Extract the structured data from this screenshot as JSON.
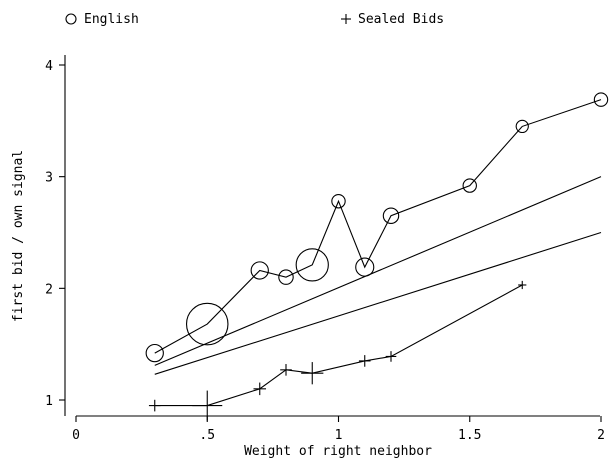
{
  "chart_data": {
    "type": "scatter",
    "title": "",
    "xlabel": "Weight of right neighbor",
    "ylabel": "first bid / own signal",
    "xlim": [
      0,
      2
    ],
    "ylim": [
      0.85,
      4.12
    ],
    "x_ticks": [
      {
        "value": 0,
        "label": "0"
      },
      {
        "value": 0.5,
        "label": ".5"
      },
      {
        "value": 1,
        "label": "1"
      },
      {
        "value": 1.5,
        "label": "1.5"
      },
      {
        "value": 2,
        "label": "2"
      }
    ],
    "y_ticks": [
      {
        "value": 1,
        "label": "1"
      },
      {
        "value": 2,
        "label": "2"
      },
      {
        "value": 3,
        "label": "3"
      },
      {
        "value": 4,
        "label": "4"
      }
    ],
    "grid": false,
    "legend_position": "top",
    "series": [
      {
        "name": "English",
        "marker": "circle",
        "connected": true,
        "points": [
          {
            "x": 0.3,
            "y": 1.42,
            "weight": 1.0
          },
          {
            "x": 0.5,
            "y": 1.68,
            "weight": 5.8
          },
          {
            "x": 0.7,
            "y": 2.16,
            "weight": 1.0
          },
          {
            "x": 0.8,
            "y": 2.1,
            "weight": 0.7
          },
          {
            "x": 0.9,
            "y": 2.21,
            "weight": 3.5
          },
          {
            "x": 1.0,
            "y": 2.78,
            "weight": 0.6
          },
          {
            "x": 1.1,
            "y": 2.19,
            "weight": 1.1
          },
          {
            "x": 1.2,
            "y": 2.65,
            "weight": 0.8
          },
          {
            "x": 1.5,
            "y": 2.92,
            "weight": 0.6
          },
          {
            "x": 1.7,
            "y": 3.45,
            "weight": 0.5
          },
          {
            "x": 2.0,
            "y": 3.69,
            "weight": 0.6
          }
        ]
      },
      {
        "name": "Sealed Bids",
        "marker": "plus",
        "connected": true,
        "points": [
          {
            "x": 0.3,
            "y": 0.95,
            "weight": 0.6
          },
          {
            "x": 0.5,
            "y": 0.95,
            "weight": 4.0
          },
          {
            "x": 0.7,
            "y": 1.1,
            "weight": 0.7
          },
          {
            "x": 0.8,
            "y": 1.27,
            "weight": 0.6
          },
          {
            "x": 0.9,
            "y": 1.24,
            "weight": 2.2
          },
          {
            "x": 1.1,
            "y": 1.35,
            "weight": 0.6
          },
          {
            "x": 1.2,
            "y": 1.39,
            "weight": 0.5
          },
          {
            "x": 1.7,
            "y": 2.03,
            "weight": 0.3
          }
        ]
      }
    ],
    "reference_lines": [
      {
        "name": "reference-line-upper",
        "from": [
          0.3,
          1.31
        ],
        "to": [
          2.0,
          3.0
        ]
      },
      {
        "name": "reference-line-lower",
        "from": [
          0.3,
          1.23
        ],
        "to": [
          2.0,
          2.5
        ]
      }
    ]
  }
}
